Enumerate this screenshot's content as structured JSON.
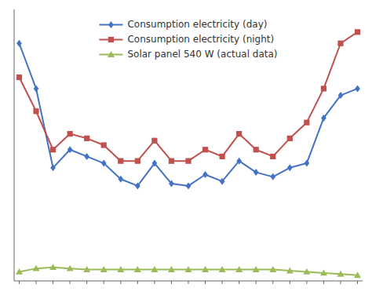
{
  "chart_data": {
    "type": "line",
    "x": [
      0,
      1,
      2,
      3,
      4,
      5,
      6,
      7,
      8,
      9,
      10,
      11,
      12,
      13,
      14,
      15,
      16,
      17,
      18,
      19,
      20
    ],
    "series": [
      {
        "name": "Consumption electricity (day)",
        "color": "#4472C4",
        "marker": "diamond",
        "values": [
          10.5,
          8.5,
          5.0,
          5.8,
          5.5,
          5.2,
          4.5,
          4.2,
          5.2,
          4.3,
          4.2,
          4.7,
          4.4,
          5.3,
          4.8,
          4.6,
          5.0,
          5.2,
          7.2,
          8.2,
          8.5
        ]
      },
      {
        "name": "Consumption electricity (night)",
        "color": "#C0504D",
        "marker": "square",
        "values": [
          9.0,
          7.5,
          5.8,
          6.5,
          6.3,
          6.0,
          5.3,
          5.3,
          6.2,
          5.3,
          5.3,
          5.8,
          5.5,
          6.5,
          5.8,
          5.5,
          6.3,
          7.0,
          8.5,
          10.5,
          11.0
        ]
      },
      {
        "name": "Solar panel 540 W (actual data)",
        "color": "#9BBB59",
        "marker": "triangle",
        "values": [
          0.4,
          0.55,
          0.6,
          0.55,
          0.5,
          0.5,
          0.5,
          0.5,
          0.5,
          0.5,
          0.5,
          0.5,
          0.5,
          0.5,
          0.5,
          0.5,
          0.45,
          0.4,
          0.35,
          0.3,
          0.25
        ]
      }
    ],
    "xlim": [
      -0.3,
      20.3
    ],
    "ylim": [
      0,
      12
    ],
    "xticks": [
      0,
      1,
      2,
      3,
      4,
      5,
      6,
      7,
      8,
      9,
      10,
      11,
      12,
      13,
      14,
      15,
      16,
      17,
      18,
      19,
      20
    ],
    "tick_labels": false,
    "legend": "upper center"
  }
}
